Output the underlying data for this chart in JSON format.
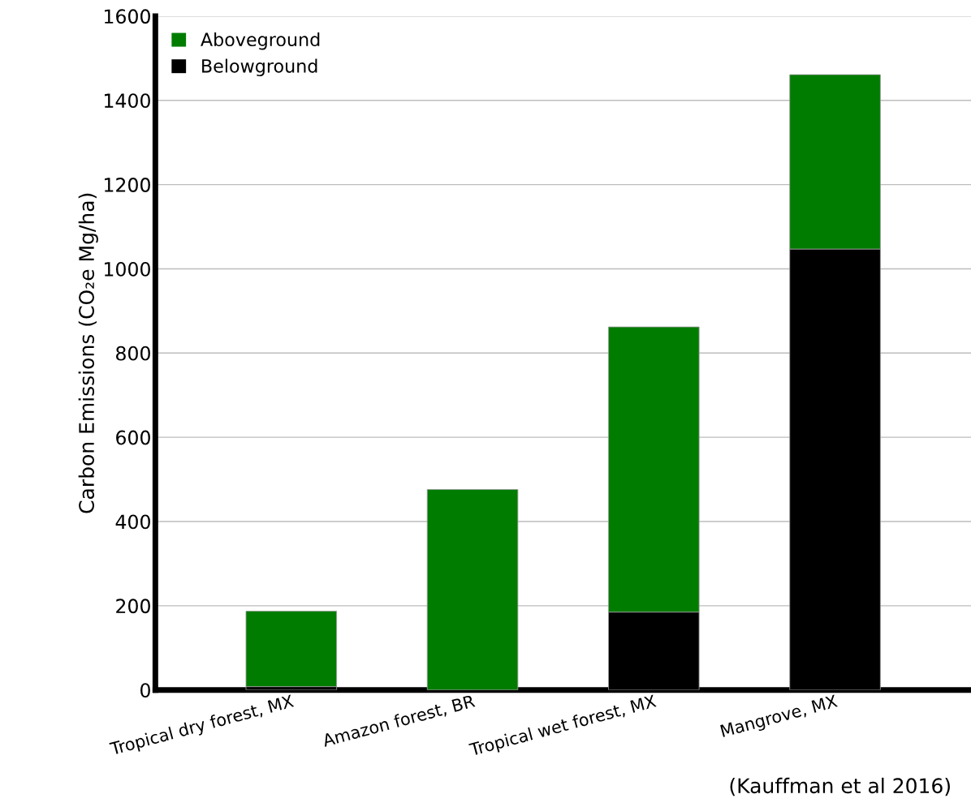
{
  "chart_data": {
    "type": "bar",
    "stacked": true,
    "ylabel": "Carbon Emissions (CO₂e Mg/ha)",
    "categories": [
      "Tropical dry forest, MX",
      "Amazon forest, BR",
      "Tropical wet forest, MX",
      "Mangrove, MX"
    ],
    "series": [
      {
        "name": "Belowground",
        "color": "#000000",
        "values": [
          8,
          0,
          185,
          1047
        ]
      },
      {
        "name": "Aboveground",
        "color": "#007c00",
        "values": [
          179,
          476,
          677,
          414
        ]
      }
    ],
    "ylim": [
      0,
      1600
    ],
    "yticks": [
      0,
      200,
      400,
      600,
      800,
      1000,
      1200,
      1400,
      1600
    ],
    "grid": "y",
    "legend": "top left",
    "annotations": [
      "(Kauffman et al 2016)"
    ]
  }
}
